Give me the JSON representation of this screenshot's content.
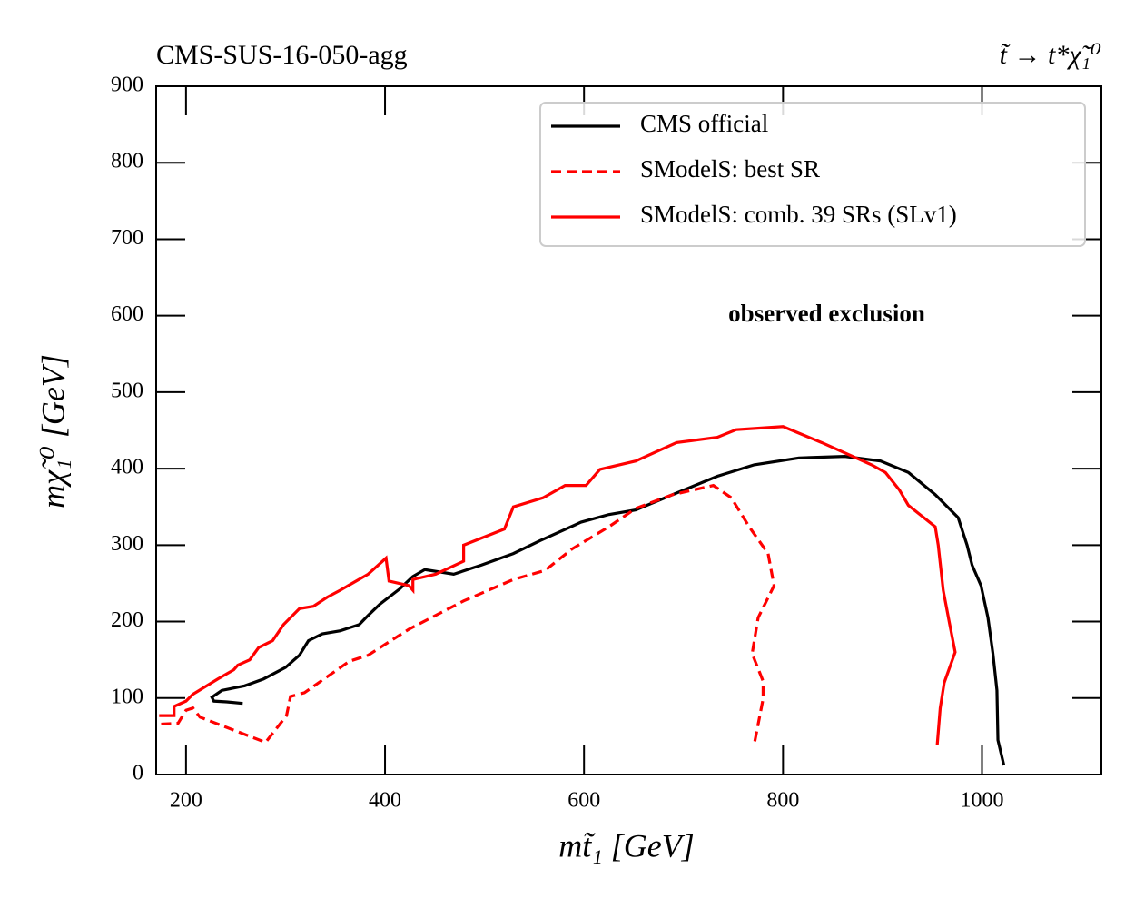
{
  "chart_data": {
    "type": "line",
    "title": "CMS-SUS-16-050-agg",
    "subtitle": "t̃ → t*χ̃₁⁰",
    "x_label": "mt̃₁ [GeV]",
    "y_label": "mχ̃₁⁰ [GeV]",
    "annotation": {
      "text": "observed exclusion",
      "x": 844,
      "y": 600
    },
    "xlim": [
      170,
      1120
    ],
    "ylim": [
      0,
      900
    ],
    "xticks": [
      200,
      400,
      600,
      800,
      1000
    ],
    "yticks": [
      0,
      100,
      200,
      300,
      400,
      500,
      600,
      700,
      800,
      900
    ],
    "legend": "upper right",
    "series": [
      {
        "name": "CMS official",
        "color": "#000000",
        "linestyle": "solid",
        "x": [
          257,
          241,
          228,
          226,
          236,
          259,
          278,
          300,
          314,
          323,
          337,
          355,
          374,
          383,
          395,
          415,
          428,
          440,
          469,
          497,
          529,
          556,
          597,
          625,
          652,
          689,
          734,
          771,
          816,
          862,
          898,
          926,
          953,
          976,
          985,
          990,
          999,
          1006,
          1011,
          1015,
          1016,
          1022
        ],
        "values": [
          93,
          95,
          96,
          101,
          110,
          116,
          125,
          140,
          156,
          175,
          184,
          188,
          196,
          208,
          223,
          243,
          259,
          268,
          262,
          274,
          289,
          306,
          330,
          340,
          346,
          366,
          390,
          405,
          414,
          416,
          410,
          395,
          366,
          336,
          300,
          274,
          247,
          205,
          158,
          110,
          45,
          12
        ]
      },
      {
        "name": "SModelS: best SR",
        "color": "#ff0000",
        "linestyle": "dashed",
        "x": [
          175,
          192,
          200,
          207,
          214,
          280,
          301,
          305,
          319,
          342,
          364,
          383,
          424,
          479,
          529,
          561,
          588,
          625,
          652,
          689,
          730,
          748,
          766,
          785,
          791,
          775,
          769,
          780,
          780,
          771
        ],
        "values": [
          66,
          67,
          84,
          87,
          75,
          42,
          77,
          102,
          107,
          128,
          148,
          156,
          190,
          227,
          255,
          267,
          295,
          324,
          348,
          366,
          378,
          362,
          324,
          289,
          247,
          205,
          158,
          122,
          99,
          39
        ]
      },
      {
        "name": "SModelS: comb. 39 SRs (SLv1)",
        "color": "#ff0000",
        "linestyle": "solid",
        "x": [
          173,
          188,
          188,
          200,
          207,
          232,
          248,
          252,
          264,
          273,
          287,
          298,
          314,
          328,
          342,
          355,
          383,
          401,
          404,
          424,
          428,
          428,
          451,
          479,
          479,
          520,
          529,
          559,
          581,
          602,
          616,
          652,
          693,
          734,
          753,
          800,
          839,
          889,
          903,
          917,
          926,
          953,
          956,
          961,
          967,
          973,
          962,
          958,
          955
        ],
        "values": [
          77,
          77,
          89,
          96,
          105,
          125,
          137,
          143,
          150,
          166,
          175,
          196,
          217,
          220,
          232,
          241,
          262,
          283,
          253,
          247,
          241,
          255,
          262,
          279,
          300,
          321,
          350,
          362,
          378,
          378,
          399,
          410,
          434,
          441,
          451,
          455,
          434,
          405,
          395,
          372,
          352,
          324,
          300,
          241,
          200,
          160,
          120,
          87,
          39
        ]
      }
    ]
  }
}
